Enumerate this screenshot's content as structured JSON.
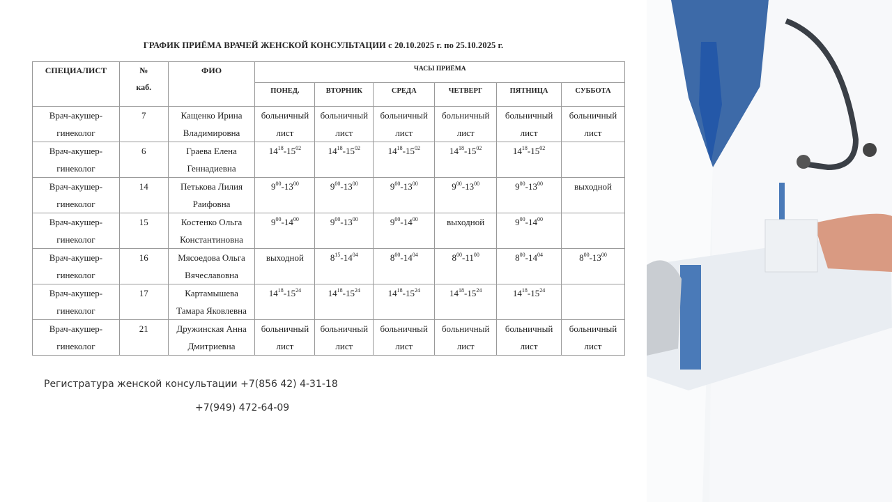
{
  "title": "ГРАФИК ПРИЁМА ВРАЧЕЙ ЖЕНСКОЙ КОНСУЛЬТАЦИИ  с  20.10.2025 г. по 25.10.2025 г.",
  "headers": {
    "specialist": "СПЕЦИАЛИСТ",
    "room_no": "№",
    "room_cab": "каб.",
    "name": "ФИО",
    "hours": "ЧАСЫ ПРИЁМА",
    "days": [
      "ПОНЕД.",
      "ВТОРНИК",
      "СРЕДА",
      "ЧЕТВЕРГ",
      "ПЯТНИЦА",
      "СУББОТА"
    ]
  },
  "rows": [
    {
      "specialist": [
        "Врач-акушер-",
        "гинеколог"
      ],
      "room": "7",
      "name": [
        "Кащенко Ирина",
        "Владимировна"
      ],
      "days": [
        [
          "больничный",
          "лист"
        ],
        [
          "больничный",
          "лист"
        ],
        [
          "больничный",
          "лист"
        ],
        [
          "больничный",
          "лист"
        ],
        [
          "больничный",
          "лист"
        ],
        [
          "больничный",
          "лист"
        ]
      ]
    },
    {
      "specialist": [
        "Врач-акушер-",
        "гинеколог"
      ],
      "room": "6",
      "name": [
        "Граева Елена",
        "Геннадиевна"
      ],
      "days": [
        {
          "t": [
            "14",
            "18",
            "15",
            "02"
          ]
        },
        {
          "t": [
            "14",
            "18",
            "15",
            "02"
          ]
        },
        {
          "t": [
            "14",
            "18",
            "15",
            "02"
          ]
        },
        {
          "t": [
            "14",
            "18",
            "15",
            "02"
          ]
        },
        {
          "t": [
            "14",
            "18",
            "15",
            "02"
          ]
        },
        []
      ]
    },
    {
      "specialist": [
        "Врач-акушер-",
        "гинеколог"
      ],
      "room": "14",
      "name": [
        "Петькова Лилия",
        "Раифовна"
      ],
      "days": [
        {
          "t": [
            "9",
            "00",
            "13",
            "00"
          ]
        },
        {
          "t": [
            "9",
            "00",
            "13",
            "00"
          ]
        },
        {
          "t": [
            "9",
            "00",
            "13",
            "00"
          ]
        },
        {
          "t": [
            "9",
            "00",
            "13",
            "00"
          ]
        },
        {
          "t": [
            "9",
            "00",
            "13",
            "00"
          ]
        },
        [
          "выходной"
        ]
      ]
    },
    {
      "specialist": [
        "Врач-акушер-",
        "гинеколог"
      ],
      "room": "15",
      "name": [
        "Костенко Ольга",
        "Константиновна"
      ],
      "days": [
        {
          "t": [
            "9",
            "00",
            "14",
            "00"
          ]
        },
        {
          "t": [
            "9",
            "00",
            "13",
            "00"
          ]
        },
        {
          "t": [
            "9",
            "00",
            "14",
            "00"
          ]
        },
        [
          "выходной"
        ],
        {
          "t": [
            "9",
            "00",
            "14",
            "00"
          ]
        },
        []
      ]
    },
    {
      "specialist": [
        "Врач-акушер-",
        "гинеколог"
      ],
      "room": "16",
      "name": [
        "Мясоедова Ольга",
        "Вячеславовна"
      ],
      "days": [
        [
          "выходной"
        ],
        {
          "t": [
            "8",
            "15",
            "14",
            "04"
          ]
        },
        {
          "t": [
            "8",
            "00",
            "14",
            "04"
          ]
        },
        {
          "t": [
            "8",
            "00",
            "11",
            "00"
          ]
        },
        {
          "t": [
            "8",
            "00",
            "14",
            "04"
          ]
        },
        {
          "t": [
            "8",
            "00",
            "13",
            "00"
          ]
        }
      ]
    },
    {
      "specialist": [
        "Врач-акушер-",
        "гинеколог"
      ],
      "room": "17",
      "name": [
        "Картамышева",
        "Тамара Яковлевна"
      ],
      "days": [
        {
          "t": [
            "14",
            "18",
            "15",
            "24"
          ]
        },
        {
          "t": [
            "14",
            "18",
            "15",
            "24"
          ]
        },
        {
          "t": [
            "14",
            "18",
            "15",
            "24"
          ]
        },
        {
          "t": [
            "14",
            "18",
            "15",
            "24"
          ]
        },
        {
          "t": [
            "14",
            "18",
            "15",
            "24"
          ]
        },
        []
      ]
    },
    {
      "specialist": [
        "Врач-акушер-",
        "гинеколог"
      ],
      "room": "21",
      "name": [
        "Дружинская Анна",
        "Дмитриевна"
      ],
      "days": [
        [
          "больничный",
          "лист"
        ],
        [
          "больничный",
          "лист"
        ],
        [
          "больничный",
          "лист"
        ],
        [
          "больничный",
          "лист"
        ],
        [
          "больничный",
          "лист"
        ],
        [
          "больничный",
          "лист"
        ]
      ]
    }
  ],
  "contacts": {
    "registry": "Регистратура женской консультации +7(856 42) 4-31-18",
    "phone2": "+7(949) 472-64-09"
  }
}
